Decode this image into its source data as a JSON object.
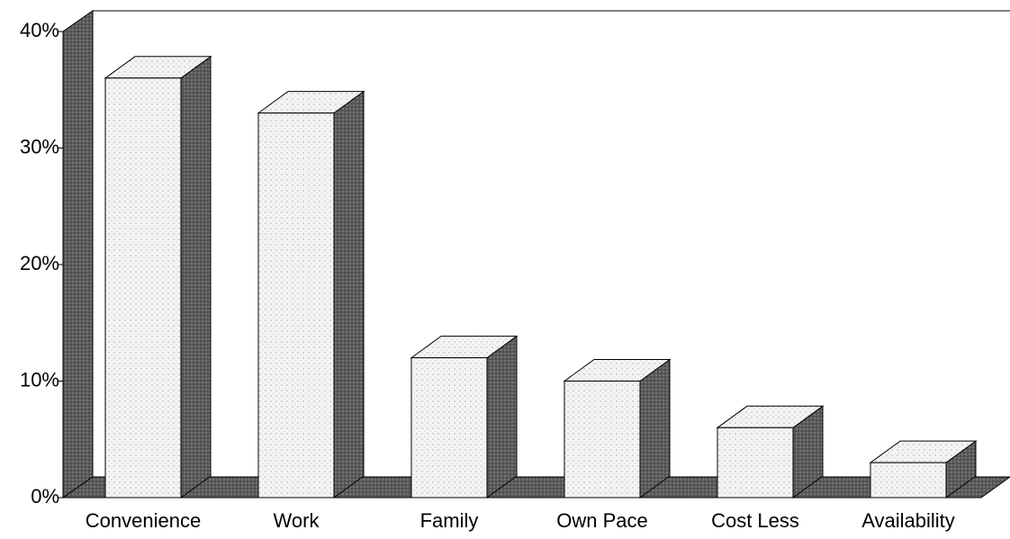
{
  "chart_data": {
    "type": "bar3d",
    "categories": [
      "Convenience",
      "Work",
      "Family",
      "Own Pace",
      "Cost Less",
      "Availability"
    ],
    "values": [
      36,
      33,
      12,
      10,
      6,
      3
    ],
    "color": "#f2f2f2",
    "ylim": [
      0,
      40
    ],
    "yticks": [
      {
        "value": 0,
        "label": "0%"
      },
      {
        "value": 10,
        "label": "10%"
      },
      {
        "value": 20,
        "label": "20%"
      },
      {
        "value": 30,
        "label": "30%"
      },
      {
        "value": 40,
        "label": "40%"
      }
    ]
  }
}
